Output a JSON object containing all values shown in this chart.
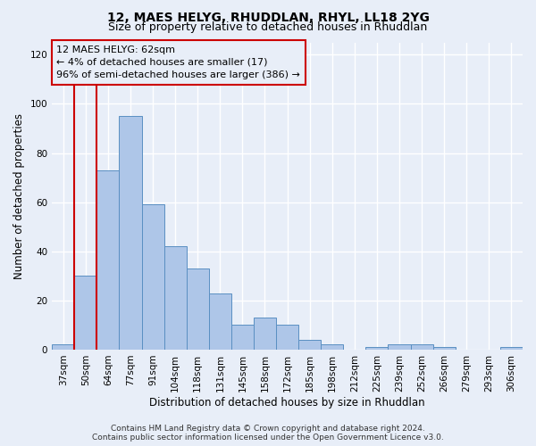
{
  "title": "12, MAES HELYG, RHUDDLAN, RHYL, LL18 2YG",
  "subtitle": "Size of property relative to detached houses in Rhuddlan",
  "xlabel": "Distribution of detached houses by size in Rhuddlan",
  "ylabel": "Number of detached properties",
  "categories": [
    "37sqm",
    "50sqm",
    "64sqm",
    "77sqm",
    "91sqm",
    "104sqm",
    "118sqm",
    "131sqm",
    "145sqm",
    "158sqm",
    "172sqm",
    "185sqm",
    "198sqm",
    "212sqm",
    "225sqm",
    "239sqm",
    "252sqm",
    "266sqm",
    "279sqm",
    "293sqm",
    "306sqm"
  ],
  "values": [
    2,
    30,
    73,
    95,
    59,
    42,
    33,
    23,
    10,
    13,
    10,
    4,
    2,
    0,
    1,
    2,
    2,
    1,
    0,
    0,
    1
  ],
  "highlight_index": 1,
  "bar_color": "#aec6e8",
  "bar_edge_color": "#5a8fc2",
  "highlight_bar_edge_color": "#cc0000",
  "annotation_box_text": "12 MAES HELYG: 62sqm\n← 4% of detached houses are smaller (17)\n96% of semi-detached houses are larger (386) →",
  "annotation_box_edge_color": "#cc0000",
  "ylim": [
    0,
    125
  ],
  "yticks": [
    0,
    20,
    40,
    60,
    80,
    100,
    120
  ],
  "background_color": "#e8eef8",
  "grid_color": "#ffffff",
  "footer_line1": "Contains HM Land Registry data © Crown copyright and database right 2024.",
  "footer_line2": "Contains public sector information licensed under the Open Government Licence v3.0.",
  "title_fontsize": 10,
  "subtitle_fontsize": 9,
  "xlabel_fontsize": 8.5,
  "ylabel_fontsize": 8.5,
  "tick_fontsize": 7.5,
  "annotation_fontsize": 8,
  "footer_fontsize": 6.5
}
